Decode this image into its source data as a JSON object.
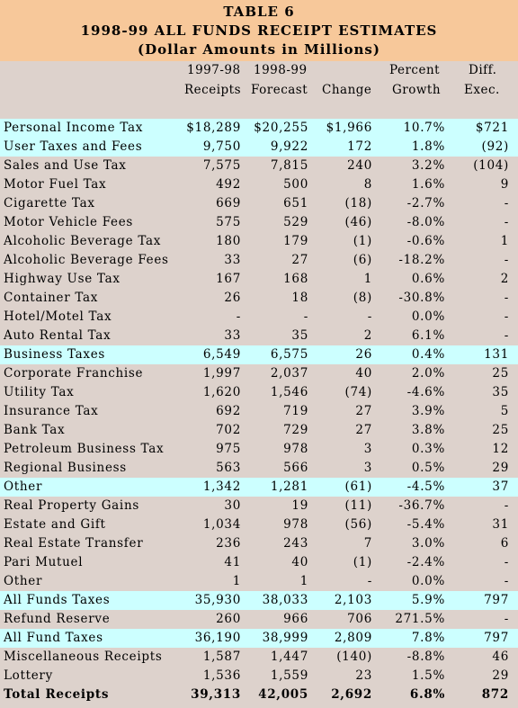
{
  "title": {
    "line1": "TABLE 6",
    "line2": "1998-99 ALL FUNDS RECEIPT ESTIMATES",
    "line3": "(Dollar Amounts in Millions)"
  },
  "headers": {
    "receipts_top": "1997-98",
    "receipts_bottom": "Receipts",
    "forecast_top": "1998-99",
    "forecast_bottom": "Forecast",
    "change": "Change",
    "percent_top": "Percent",
    "percent_bottom": "Growth",
    "diff_top": "Diff.",
    "diff_bottom": "Exec."
  },
  "colors": {
    "title_bg": "#f7c89a",
    "page_bg": "#ddd2cc",
    "highlight_bg": "#ccffff"
  },
  "rows": [
    {
      "label": "Personal Income Tax",
      "r97": "$18,289",
      "f98": "$20,255",
      "chg": "$1,966",
      "pct": "10.7%",
      "dif": "$721",
      "hl": true
    },
    {
      "label": "User Taxes and Fees",
      "r97": "9,750",
      "f98": "9,922",
      "chg": "172",
      "pct": "1.8%",
      "dif": "(92)",
      "hl": true
    },
    {
      "label": "Sales and Use Tax",
      "r97": "7,575",
      "f98": "7,815",
      "chg": "240",
      "pct": "3.2%",
      "dif": "(104)"
    },
    {
      "label": "Motor Fuel Tax",
      "r97": "492",
      "f98": "500",
      "chg": "8",
      "pct": "1.6%",
      "dif": "9"
    },
    {
      "label": "Cigarette Tax",
      "r97": "669",
      "f98": "651",
      "chg": "(18)",
      "pct": "-2.7%",
      "dif": "-"
    },
    {
      "label": "Motor Vehicle Fees",
      "r97": "575",
      "f98": "529",
      "chg": "(46)",
      "pct": "-8.0%",
      "dif": "-"
    },
    {
      "label": "Alcoholic Beverage Tax",
      "r97": "180",
      "f98": "179",
      "chg": "(1)",
      "pct": "-0.6%",
      "dif": "1"
    },
    {
      "label": "Alcoholic Beverage Fees",
      "r97": "33",
      "f98": "27",
      "chg": "(6)",
      "pct": "-18.2%",
      "dif": "-"
    },
    {
      "label": "Highway Use Tax",
      "r97": "167",
      "f98": "168",
      "chg": "1",
      "pct": "0.6%",
      "dif": "2"
    },
    {
      "label": "Container Tax",
      "r97": "26",
      "f98": "18",
      "chg": "(8)",
      "pct": "-30.8%",
      "dif": "-"
    },
    {
      "label": "Hotel/Motel Tax",
      "r97": "-",
      "f98": "-",
      "chg": "-",
      "pct": "0.0%",
      "dif": "-"
    },
    {
      "label": "Auto Rental Tax",
      "r97": "33",
      "f98": "35",
      "chg": "2",
      "pct": "6.1%",
      "dif": "-"
    },
    {
      "label": "Business Taxes",
      "r97": "6,549",
      "f98": "6,575",
      "chg": "26",
      "pct": "0.4%",
      "dif": "131",
      "hl": true
    },
    {
      "label": "Corporate Franchise",
      "r97": "1,997",
      "f98": "2,037",
      "chg": "40",
      "pct": "2.0%",
      "dif": "25"
    },
    {
      "label": "Utility Tax",
      "r97": "1,620",
      "f98": "1,546",
      "chg": "(74)",
      "pct": "-4.6%",
      "dif": "35"
    },
    {
      "label": "Insurance Tax",
      "r97": "692",
      "f98": "719",
      "chg": "27",
      "pct": "3.9%",
      "dif": "5"
    },
    {
      "label": "Bank Tax",
      "r97": "702",
      "f98": "729",
      "chg": "27",
      "pct": "3.8%",
      "dif": "25"
    },
    {
      "label": "Petroleum Business Tax",
      "r97": "975",
      "f98": "978",
      "chg": "3",
      "pct": "0.3%",
      "dif": "12"
    },
    {
      "label": "Regional Business",
      "r97": "563",
      "f98": "566",
      "chg": "3",
      "pct": "0.5%",
      "dif": "29"
    },
    {
      "label": "Other",
      "r97": "1,342",
      "f98": "1,281",
      "chg": "(61)",
      "pct": "-4.5%",
      "dif": "37",
      "hl": true
    },
    {
      "label": "Real Property Gains",
      "r97": "30",
      "f98": "19",
      "chg": "(11)",
      "pct": "-36.7%",
      "dif": "-"
    },
    {
      "label": "Estate and Gift",
      "r97": "1,034",
      "f98": "978",
      "chg": "(56)",
      "pct": "-5.4%",
      "dif": "31"
    },
    {
      "label": "Real Estate Transfer",
      "r97": "236",
      "f98": "243",
      "chg": "7",
      "pct": "3.0%",
      "dif": "6"
    },
    {
      "label": "Pari Mutuel",
      "r97": "41",
      "f98": "40",
      "chg": "(1)",
      "pct": "-2.4%",
      "dif": "-"
    },
    {
      "label": "Other",
      "r97": "1",
      "f98": "1",
      "chg": "-",
      "pct": "0.0%",
      "dif": "-"
    },
    {
      "label": "All Funds Taxes",
      "r97": "35,930",
      "f98": "38,033",
      "chg": "2,103",
      "pct": "5.9%",
      "dif": "797",
      "hl": true
    },
    {
      "label": "Refund Reserve",
      "r97": "260",
      "f98": "966",
      "chg": "706",
      "pct": "271.5%",
      "dif": "-"
    },
    {
      "label": "All Fund Taxes",
      "r97": "36,190",
      "f98": "38,999",
      "chg": "2,809",
      "pct": "7.8%",
      "dif": "797",
      "hl": true
    },
    {
      "label": "Miscellaneous Receipts",
      "r97": "1,587",
      "f98": "1,447",
      "chg": "(140)",
      "pct": "-8.8%",
      "dif": "46"
    },
    {
      "label": "Lottery",
      "r97": "1,536",
      "f98": "1,559",
      "chg": "23",
      "pct": "1.5%",
      "dif": "29"
    },
    {
      "label": "Total Receipts",
      "r97": "39,313",
      "f98": "42,005",
      "chg": "2,692",
      "pct": "6.8%",
      "dif": "872",
      "total": true
    }
  ]
}
